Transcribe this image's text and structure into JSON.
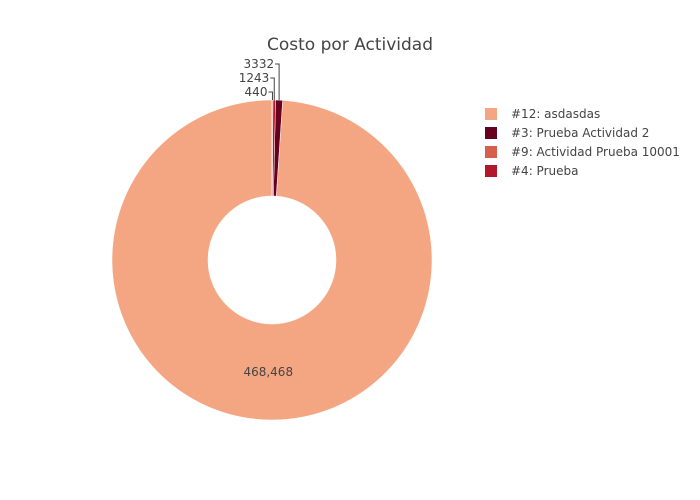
{
  "chart_data": {
    "type": "pie",
    "hole": true,
    "title": "Costo por Actividad",
    "legend_position": "top-right",
    "slices": [
      {
        "name": "#12: asdasdas",
        "value": 468468,
        "label": "468,468",
        "color": "#f4a683"
      },
      {
        "name": "#3: Prueba Actividad 2",
        "value": 3332,
        "label": "3332",
        "color": "#67001f"
      },
      {
        "name": "#9: Actividad Prueba 10001",
        "value": 440,
        "label": "440",
        "color": "#d6604d"
      },
      {
        "name": "#4: Prueba",
        "value": 1243,
        "label": "1243",
        "color": "#b2182b"
      }
    ]
  }
}
